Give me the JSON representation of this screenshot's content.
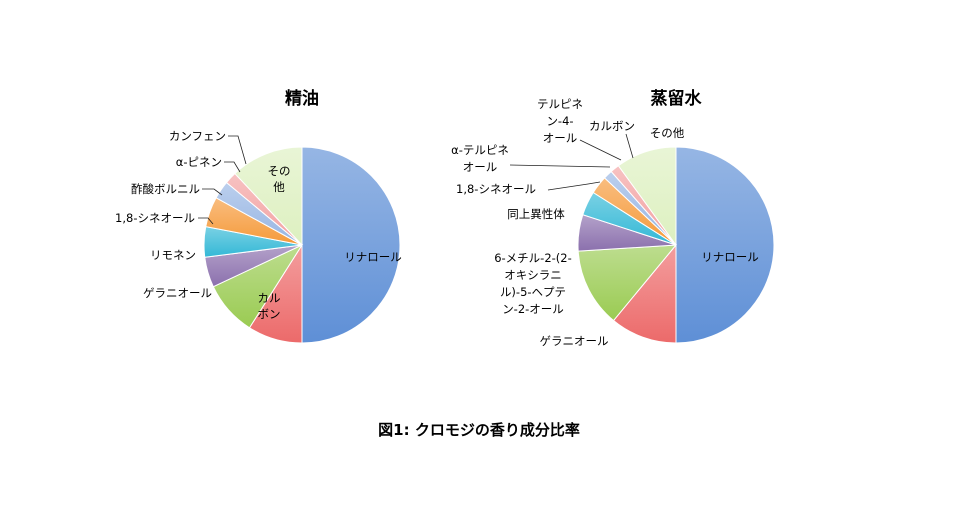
{
  "figure_caption": "図1: クロモジの香り成分比率",
  "chart_data": [
    {
      "type": "pie",
      "title": "精油",
      "slices": [
        {
          "label": "リナロール",
          "value": 50.0,
          "color": "#5e8fd6"
        },
        {
          "label": "カルボン",
          "value": 9.0,
          "color": "#ec6a6a"
        },
        {
          "label": "ゲラニオール",
          "value": 9.0,
          "color": "#9acb52"
        },
        {
          "label": "リモネン",
          "value": 5.0,
          "color": "#8b70ad"
        },
        {
          "label": "1,8-シネオール",
          "value": 5.0,
          "color": "#33b8d6"
        },
        {
          "label": "酢酸ボルニル",
          "value": 5.0,
          "color": "#f59a3a"
        },
        {
          "label": "α-ピネン",
          "value": 3.0,
          "color": "#97b5e3"
        },
        {
          "label": "カンフェン",
          "value": 2.0,
          "color": "#f2a1a1"
        },
        {
          "label": "その他",
          "value": 12.0,
          "color": "#ddf0c0"
        }
      ]
    },
    {
      "type": "pie",
      "title": "蒸留水",
      "slices": [
        {
          "label": "リナロール",
          "value": 50.0,
          "color": "#5e8fd6"
        },
        {
          "label": "ゲラニオール",
          "value": 11.0,
          "color": "#ec6a6a"
        },
        {
          "label": "6-メチル-2-(2-オキシラニル)-5-ヘプテン-2-オール",
          "value": 13.0,
          "color": "#9acb52"
        },
        {
          "label": "同上異性体",
          "value": 6.0,
          "color": "#8b70ad"
        },
        {
          "label": "1,8-シネオール",
          "value": 4.0,
          "color": "#33b8d6"
        },
        {
          "label": "α-テルピネオール",
          "value": 3.0,
          "color": "#f59a3a"
        },
        {
          "label": "テルピネン-4-オール",
          "value": 1.5,
          "color": "#97b5e3"
        },
        {
          "label": "カルボン",
          "value": 1.5,
          "color": "#f2a1a1"
        },
        {
          "label": "その他",
          "value": 10.0,
          "color": "#ddf0c0"
        }
      ]
    }
  ]
}
